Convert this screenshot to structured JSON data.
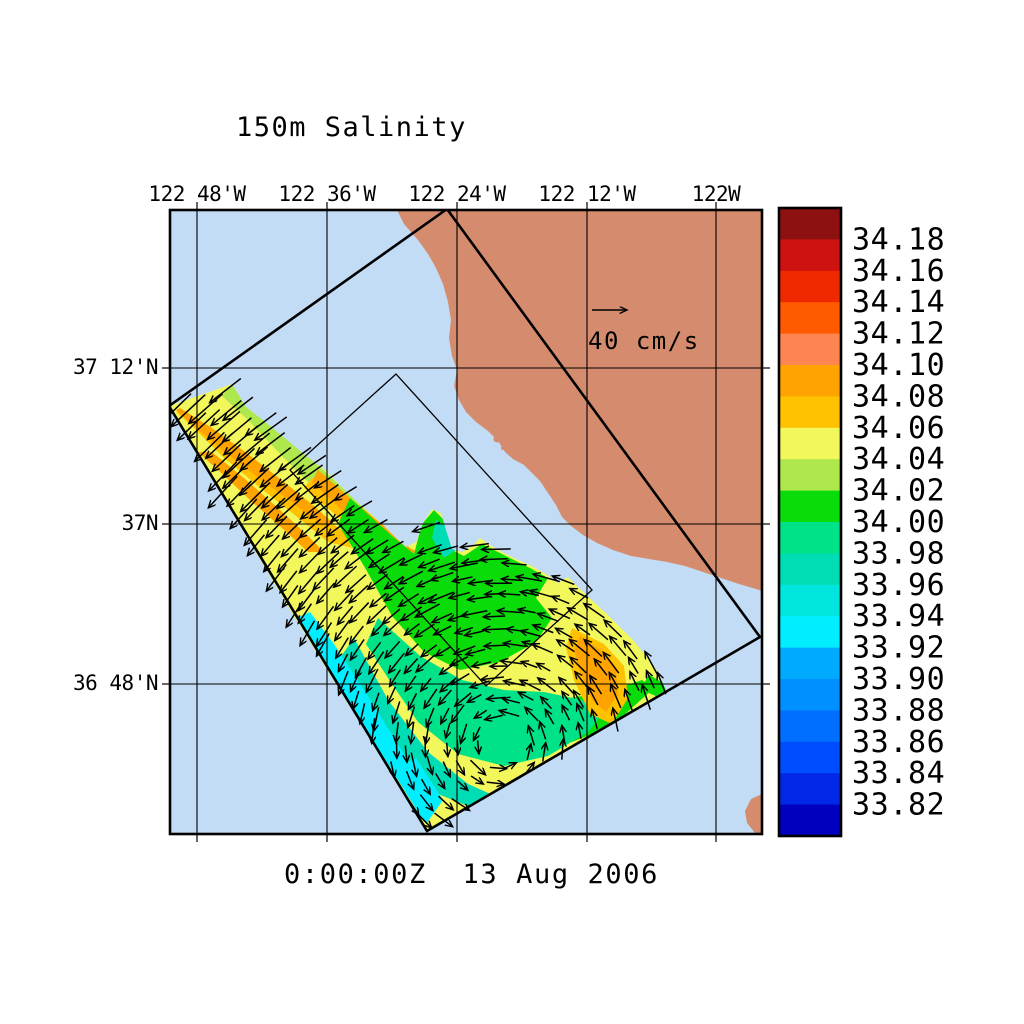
{
  "title": "150m Salinity",
  "timestamp": "0:00:00Z  13 Aug 2006",
  "reference_vector": {
    "label": "40 cm/s",
    "value": 40,
    "units": "cm/s"
  },
  "axes": {
    "top_labels": [
      "122 48'W",
      "122 36'W",
      "122 24'W",
      "122 12'W",
      "122W"
    ],
    "left_labels": [
      "37 12'N",
      "37N",
      "36 48'N"
    ]
  },
  "colorbar": {
    "labels": [
      "34.18",
      "34.16",
      "34.14",
      "34.12",
      "34.10",
      "34.08",
      "34.06",
      "34.04",
      "34.02",
      "34.00",
      "33.98",
      "33.96",
      "33.94",
      "33.92",
      "33.90",
      "33.88",
      "33.86",
      "33.84",
      "33.82"
    ],
    "band_colors": [
      "#8E1111",
      "#CE1111",
      "#F02800",
      "#FF5A00",
      "#FC8552",
      "#FFA300",
      "#FFC100",
      "#F2F75C",
      "#AEE84C",
      "#0ADC0A",
      "#00E287",
      "#00DCB4",
      "#00E5DE",
      "#00EEFF",
      "#00AAFF",
      "#0090FF",
      "#006EFF",
      "#004CFF",
      "#0028E6",
      "#0000BE"
    ]
  },
  "colors": {
    "ocean": "#C3DCF5",
    "land": "#D58C6E",
    "line": "#000000",
    "background": "#FFFFFF"
  },
  "chart_data": {
    "type": "heatmap",
    "title": "150m Salinity",
    "variable": "salinity at 150 m depth with velocity vectors",
    "time_label": "0:00:00Z  13 Aug 2006",
    "x_tick_labels": [
      "122 48'W",
      "122 36'W",
      "122 24'W",
      "122 12'W",
      "122W"
    ],
    "y_tick_labels": [
      "37 12'N",
      "37N",
      "36 48'N"
    ],
    "colorbar_levels": [
      34.18,
      34.16,
      34.14,
      34.12,
      34.1,
      34.08,
      34.06,
      34.04,
      34.02,
      34.0,
      33.98,
      33.96,
      33.94,
      33.92,
      33.9,
      33.88,
      33.86,
      33.84,
      33.82
    ],
    "colorbar_band_colors": [
      "#8E1111",
      "#CE1111",
      "#F02800",
      "#FF5A00",
      "#FC8552",
      "#FFA300",
      "#FFC100",
      "#F2F75C",
      "#AEE84C",
      "#0ADC0A",
      "#00E287",
      "#00DCB4",
      "#00E5DE",
      "#00EEFF",
      "#00AAFF",
      "#0090FF",
      "#006EFF",
      "#004CFF",
      "#0028E6",
      "#0000BE"
    ],
    "reference_vector": {
      "value": 40,
      "units": "cm/s"
    },
    "legend_position": "right colorbar",
    "grid": true,
    "overlays": [
      "velocity vector field (black arrows)",
      "thick rotated model-domain outline",
      "thin inner rotated box",
      "coastline with tan land",
      "lat/lon graticule"
    ]
  }
}
